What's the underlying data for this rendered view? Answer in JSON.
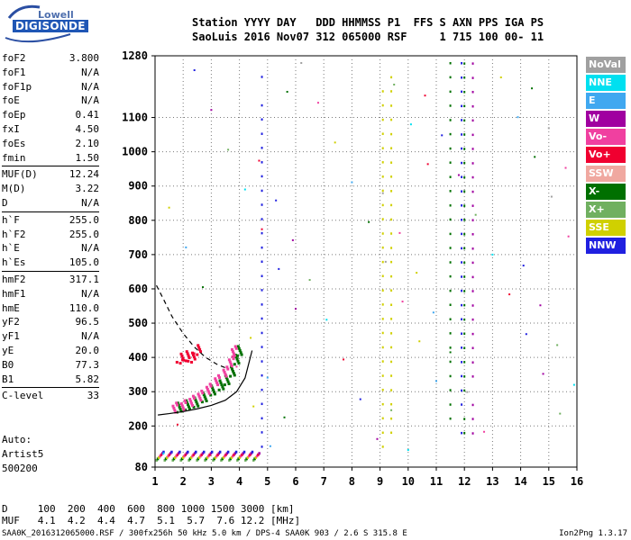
{
  "logo": {
    "line1": "Lowell",
    "line2": "DIGISONDE"
  },
  "header": {
    "row1": "Station YYYY DAY   DDD HHMMSS P1  FFS S AXN PPS IGA PS",
    "row2": "SaoLuis 2016 Nov07 312 065000 RSF     1 715 100 00- 11"
  },
  "params": [
    {
      "name": "foF2",
      "value": "3.800"
    },
    {
      "name": "foF1",
      "value": "N/A"
    },
    {
      "name": "foF1p",
      "value": "N/A"
    },
    {
      "name": "foE",
      "value": "N/A"
    },
    {
      "name": "foEp",
      "value": "0.41"
    },
    {
      "name": "fxI",
      "value": "4.50"
    },
    {
      "name": "foEs",
      "value": "2.10"
    },
    {
      "name": "fmin",
      "value": "1.50"
    },
    {
      "name": "MUF(D)",
      "value": "12.24",
      "sep_before": true
    },
    {
      "name": "M(D)",
      "value": "3.22"
    },
    {
      "name": "D",
      "value": "N/A"
    },
    {
      "name": "h`F",
      "value": "255.0",
      "sep_before": true
    },
    {
      "name": "h`F2",
      "value": "255.0"
    },
    {
      "name": "h`E",
      "value": "N/A"
    },
    {
      "name": "h`Es",
      "value": "105.0"
    },
    {
      "name": "hmF2",
      "value": "317.1",
      "sep_before": true
    },
    {
      "name": "hmF1",
      "value": "N/A"
    },
    {
      "name": "hmE",
      "value": "110.0"
    },
    {
      "name": "yF2",
      "value": "96.5"
    },
    {
      "name": "yF1",
      "value": "N/A"
    },
    {
      "name": "yE",
      "value": "20.0"
    },
    {
      "name": "B0",
      "value": "77.3"
    },
    {
      "name": "B1",
      "value": "5.82"
    },
    {
      "name": "C-level",
      "value": "33",
      "sep_before": true
    }
  ],
  "auto": {
    "line1": "Auto:",
    "line2": "Artist5",
    "line3": "500200"
  },
  "dmuf": {
    "row1": "D     100  200  400  600  800 1000 1500 3000 [km]",
    "row2": "MUF   4.1  4.2  4.4  4.7  5.1  5.7  7.6 12.2 [MHz]"
  },
  "footer": {
    "left": "SAA0K_2016312065000.RSF / 300fx256h 50 kHz 5.0 km / DPS-4 SAA0K 903 / 2.6 S 315.8 E",
    "right": "Ion2Png 1.3.17"
  },
  "legend": [
    {
      "label": "NoVal",
      "color": "#a0a0a0"
    },
    {
      "label": "NNE",
      "color": "#00e0f0"
    },
    {
      "label": "E",
      "color": "#40a8f0"
    },
    {
      "label": "W",
      "color": "#a000a0"
    },
    {
      "label": "Vo-",
      "color": "#f040a0"
    },
    {
      "label": "Vo+",
      "color": "#f00030"
    },
    {
      "label": "SSW",
      "color": "#f0a8a0"
    },
    {
      "label": "X-",
      "color": "#007000"
    },
    {
      "label": "X+",
      "color": "#70b060"
    },
    {
      "label": "SSE",
      "color": "#d0d000"
    },
    {
      "label": "NNW",
      "color": "#2020e0"
    }
  ],
  "chart_data": {
    "type": "scatter",
    "title": "",
    "xlabel": "",
    "ylabel": "",
    "xlim": [
      1,
      16
    ],
    "ylim": [
      80,
      1280
    ],
    "x_ticks": [
      "1",
      "2",
      "3",
      "4",
      "5",
      "6",
      "7",
      "8",
      "9",
      "10",
      "11",
      "12",
      "13",
      "14",
      "15",
      "16"
    ],
    "y_ticks": [
      "80",
      "200",
      "300",
      "400",
      "500",
      "600",
      "700",
      "800",
      "900",
      "1000",
      "1100",
      "1280"
    ],
    "grid": "dotted",
    "legend_position": "right",
    "traces": [
      {
        "name": "F2 trace (X-)",
        "color": "#007000",
        "points": [
          [
            1.9,
            255
          ],
          [
            2.2,
            262
          ],
          [
            2.5,
            270
          ],
          [
            2.8,
            285
          ],
          [
            3.1,
            305
          ],
          [
            3.4,
            320
          ],
          [
            3.6,
            335
          ],
          [
            3.8,
            360
          ],
          [
            3.95,
            395
          ],
          [
            4.05,
            420
          ]
        ]
      },
      {
        "name": "O trace (Vo-)",
        "color": "#f040a0",
        "points": [
          [
            1.7,
            255
          ],
          [
            2.0,
            262
          ],
          [
            2.3,
            275
          ],
          [
            2.6,
            290
          ],
          [
            2.9,
            310
          ],
          [
            3.2,
            335
          ],
          [
            3.5,
            360
          ],
          [
            3.7,
            390
          ],
          [
            3.8,
            420
          ]
        ]
      },
      {
        "name": "Es (Vo+)",
        "color": "#f00030",
        "points": [
          [
            1.9,
            395
          ],
          [
            2.1,
            402
          ],
          [
            2.3,
            398
          ],
          [
            2.5,
            420
          ]
        ]
      }
    ],
    "profile_curve": [
      [
        1.1,
        232
      ],
      [
        1.5,
        236
      ],
      [
        2.0,
        242
      ],
      [
        2.5,
        250
      ],
      [
        3.0,
        260
      ],
      [
        3.5,
        275
      ],
      [
        3.9,
        300
      ],
      [
        4.2,
        340
      ],
      [
        4.45,
        420
      ]
    ],
    "dashed_curve": [
      [
        1.05,
        610
      ],
      [
        1.3,
        570
      ],
      [
        1.6,
        520
      ],
      [
        2.0,
        470
      ],
      [
        2.4,
        430
      ],
      [
        2.8,
        400
      ],
      [
        3.2,
        380
      ],
      [
        3.5,
        370
      ]
    ]
  }
}
